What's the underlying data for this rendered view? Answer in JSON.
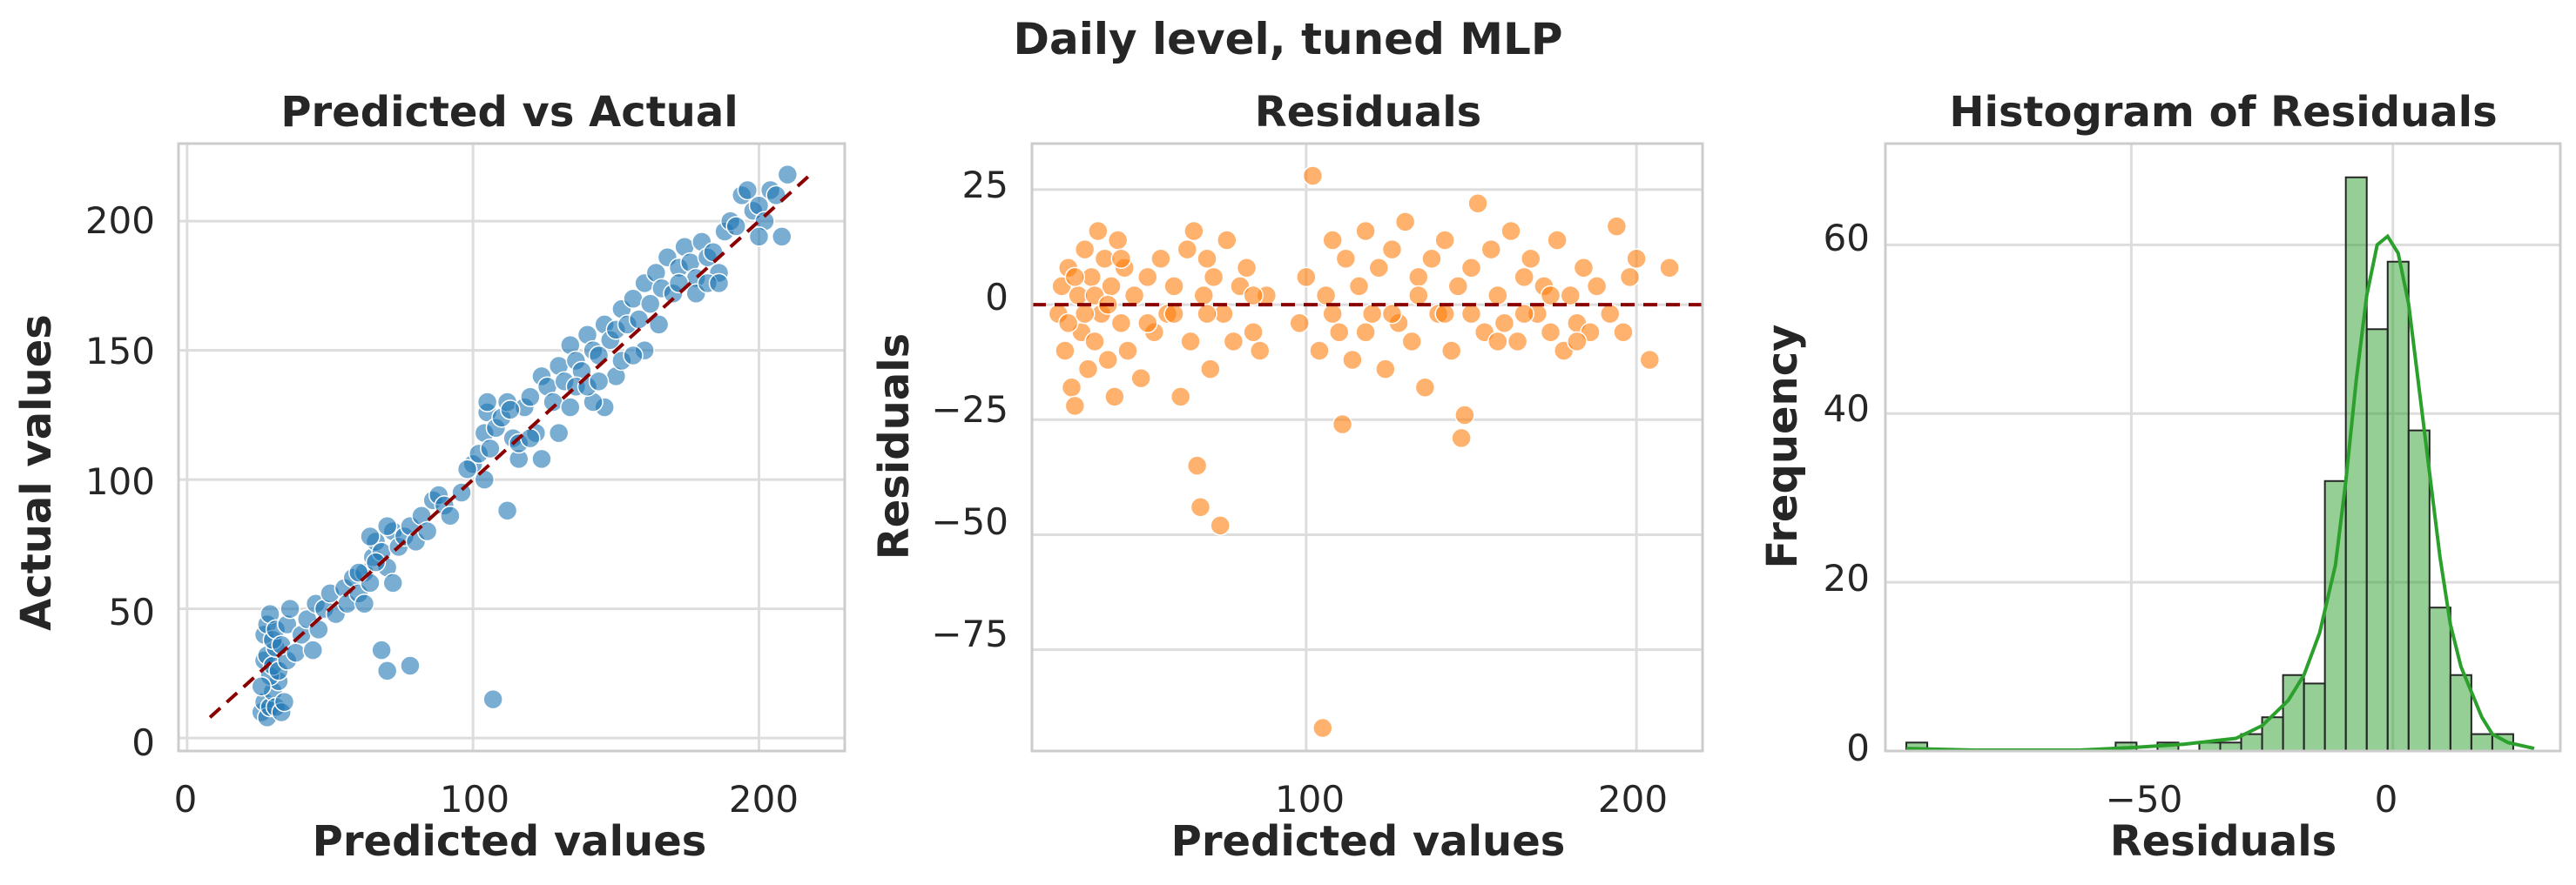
{
  "figure": {
    "suptitle": "Daily level, tuned MLP"
  },
  "colors": {
    "scatter": "#1f77b4",
    "residual": "#ff7f0e",
    "hist": "#2ca02c",
    "refline": "#8b0000",
    "grid": "#dddddd"
  },
  "panels": [
    {
      "title": "Predicted vs Actual",
      "xlabel": "Predicted values",
      "ylabel": "Actual values",
      "xticks": [
        "0",
        "100",
        "200"
      ],
      "yticks": [
        "0",
        "50",
        "100",
        "150",
        "200"
      ]
    },
    {
      "title": "Residuals",
      "xlabel": "Predicted values",
      "ylabel": "Residuals",
      "xticks": [
        "100",
        "200"
      ],
      "yticks": [
        "25",
        "0",
        "−25",
        "−50",
        "−75"
      ]
    },
    {
      "title": "Histogram of Residuals",
      "xlabel": "Residuals",
      "ylabel": "Frequency",
      "xticks": [
        "−50",
        "0"
      ],
      "yticks": [
        "0",
        "20",
        "40",
        "60"
      ]
    }
  ],
  "chart_data": [
    {
      "type": "scatter",
      "title": "Predicted vs Actual",
      "xlabel": "Predicted values",
      "ylabel": "Actual values",
      "xlim": [
        -3,
        230
      ],
      "ylim": [
        -5,
        230
      ],
      "reference_line": {
        "style": "dashed",
        "from": [
          8,
          8
        ],
        "to": [
          218,
          218
        ]
      },
      "points": [
        [
          26,
          10
        ],
        [
          27,
          14
        ],
        [
          28,
          8
        ],
        [
          29,
          12
        ],
        [
          30,
          18
        ],
        [
          31,
          12
        ],
        [
          32,
          22
        ],
        [
          33,
          10
        ],
        [
          29,
          24
        ],
        [
          26,
          20
        ],
        [
          27,
          30
        ],
        [
          28,
          32
        ],
        [
          30,
          28
        ],
        [
          31,
          35
        ],
        [
          32,
          26
        ],
        [
          34,
          14
        ],
        [
          35,
          30
        ],
        [
          27,
          40
        ],
        [
          28,
          44
        ],
        [
          29,
          48
        ],
        [
          30,
          38
        ],
        [
          31,
          42
        ],
        [
          33,
          36
        ],
        [
          35,
          44
        ],
        [
          36,
          50
        ],
        [
          38,
          33
        ],
        [
          40,
          40
        ],
        [
          42,
          46
        ],
        [
          44,
          34
        ],
        [
          45,
          52
        ],
        [
          46,
          42
        ],
        [
          48,
          50
        ],
        [
          50,
          56
        ],
        [
          52,
          48
        ],
        [
          55,
          58
        ],
        [
          56,
          52
        ],
        [
          58,
          62
        ],
        [
          60,
          56
        ],
        [
          62,
          64
        ],
        [
          64,
          60
        ],
        [
          65,
          70
        ],
        [
          66,
          76
        ],
        [
          68,
          72
        ],
        [
          70,
          66
        ],
        [
          72,
          80
        ],
        [
          74,
          74
        ],
        [
          76,
          78
        ],
        [
          78,
          82
        ],
        [
          80,
          76
        ],
        [
          82,
          86
        ],
        [
          84,
          80
        ],
        [
          86,
          92
        ],
        [
          88,
          94
        ],
        [
          90,
          90
        ],
        [
          60,
          64
        ],
        [
          62,
          52
        ],
        [
          64,
          78
        ],
        [
          66,
          68
        ],
        [
          70,
          82
        ],
        [
          72,
          60
        ],
        [
          68,
          34
        ],
        [
          70,
          26
        ],
        [
          78,
          28
        ],
        [
          107,
          15
        ],
        [
          100,
          106
        ],
        [
          102,
          110
        ],
        [
          104,
          118
        ],
        [
          105,
          126
        ],
        [
          106,
          112
        ],
        [
          108,
          120
        ],
        [
          110,
          124
        ],
        [
          112,
          130
        ],
        [
          114,
          116
        ],
        [
          116,
          108
        ],
        [
          118,
          128
        ],
        [
          120,
          132
        ],
        [
          122,
          118
        ],
        [
          124,
          140
        ],
        [
          126,
          136
        ],
        [
          128,
          130
        ],
        [
          130,
          144
        ],
        [
          132,
          138
        ],
        [
          134,
          152
        ],
        [
          136,
          146
        ],
        [
          138,
          142
        ],
        [
          140,
          156
        ],
        [
          142,
          150
        ],
        [
          144,
          148
        ],
        [
          146,
          160
        ],
        [
          148,
          154
        ],
        [
          150,
          158
        ],
        [
          152,
          166
        ],
        [
          154,
          160
        ],
        [
          156,
          170
        ],
        [
          158,
          162
        ],
        [
          160,
          176
        ],
        [
          162,
          168
        ],
        [
          164,
          180
        ],
        [
          166,
          174
        ],
        [
          168,
          186
        ],
        [
          170,
          172
        ],
        [
          172,
          182
        ],
        [
          174,
          190
        ],
        [
          176,
          184
        ],
        [
          178,
          178
        ],
        [
          180,
          192
        ],
        [
          182,
          186
        ],
        [
          184,
          188
        ],
        [
          186,
          180
        ],
        [
          188,
          196
        ],
        [
          190,
          200
        ],
        [
          192,
          198
        ],
        [
          194,
          210
        ],
        [
          196,
          212
        ],
        [
          198,
          204
        ],
        [
          200,
          206
        ],
        [
          202,
          200
        ],
        [
          204,
          212
        ],
        [
          206,
          210
        ],
        [
          210,
          218
        ],
        [
          112,
          88
        ],
        [
          130,
          118
        ],
        [
          146,
          128
        ],
        [
          150,
          140
        ],
        [
          160,
          150
        ],
        [
          165,
          160
        ],
        [
          200,
          194
        ],
        [
          208,
          194
        ],
        [
          105,
          130
        ],
        [
          113,
          127
        ],
        [
          124,
          108
        ],
        [
          142,
          130
        ],
        [
          178,
          172
        ],
        [
          182,
          176
        ],
        [
          96,
          95
        ],
        [
          92,
          86
        ],
        [
          98,
          104
        ],
        [
          104,
          100
        ],
        [
          116,
          114
        ],
        [
          120,
          116
        ],
        [
          134,
          128
        ],
        [
          136,
          136
        ],
        [
          140,
          136
        ],
        [
          144,
          138
        ],
        [
          152,
          146
        ],
        [
          156,
          148
        ],
        [
          172,
          176
        ],
        [
          186,
          176
        ]
      ]
    },
    {
      "type": "scatter",
      "title": "Residuals",
      "xlabel": "Predicted values",
      "ylabel": "Residuals",
      "xlim": [
        17,
        220
      ],
      "ylim": [
        -97,
        35
      ],
      "reference_line": {
        "style": "dashed",
        "y": 0
      },
      "points": [
        [
          25,
          -2
        ],
        [
          26,
          4
        ],
        [
          27,
          -10
        ],
        [
          28,
          8
        ],
        [
          29,
          -18
        ],
        [
          30,
          -22
        ],
        [
          31,
          2
        ],
        [
          32,
          -6
        ],
        [
          33,
          12
        ],
        [
          34,
          -14
        ],
        [
          35,
          6
        ],
        [
          36,
          -8
        ],
        [
          37,
          16
        ],
        [
          38,
          -2
        ],
        [
          39,
          10
        ],
        [
          40,
          -12
        ],
        [
          41,
          4
        ],
        [
          42,
          -20
        ],
        [
          43,
          14
        ],
        [
          44,
          -4
        ],
        [
          45,
          8
        ],
        [
          46,
          -10
        ],
        [
          48,
          2
        ],
        [
          50,
          -16
        ],
        [
          52,
          6
        ],
        [
          54,
          -6
        ],
        [
          56,
          10
        ],
        [
          58,
          -2
        ],
        [
          60,
          4
        ],
        [
          62,
          -20
        ],
        [
          64,
          12
        ],
        [
          65,
          -8
        ],
        [
          66,
          16
        ],
        [
          67,
          -35
        ],
        [
          68,
          -44
        ],
        [
          69,
          2
        ],
        [
          70,
          10
        ],
        [
          71,
          -14
        ],
        [
          72,
          6
        ],
        [
          74,
          -48
        ],
        [
          75,
          -2
        ],
        [
          76,
          14
        ],
        [
          78,
          -8
        ],
        [
          80,
          4
        ],
        [
          82,
          8
        ],
        [
          84,
          -6
        ],
        [
          86,
          -10
        ],
        [
          88,
          2
        ],
        [
          98,
          -4
        ],
        [
          100,
          6
        ],
        [
          102,
          28
        ],
        [
          104,
          -10
        ],
        [
          105,
          -92
        ],
        [
          106,
          2
        ],
        [
          108,
          14
        ],
        [
          110,
          -6
        ],
        [
          111,
          -26
        ],
        [
          112,
          10
        ],
        [
          114,
          -12
        ],
        [
          116,
          4
        ],
        [
          118,
          16
        ],
        [
          120,
          -2
        ],
        [
          122,
          8
        ],
        [
          124,
          -14
        ],
        [
          126,
          12
        ],
        [
          128,
          -4
        ],
        [
          130,
          18
        ],
        [
          132,
          -8
        ],
        [
          134,
          6
        ],
        [
          136,
          -18
        ],
        [
          138,
          10
        ],
        [
          140,
          -2
        ],
        [
          142,
          14
        ],
        [
          144,
          -10
        ],
        [
          146,
          4
        ],
        [
          147,
          -29
        ],
        [
          148,
          -24
        ],
        [
          150,
          8
        ],
        [
          152,
          22
        ],
        [
          154,
          -6
        ],
        [
          156,
          12
        ],
        [
          158,
          2
        ],
        [
          160,
          -4
        ],
        [
          162,
          16
        ],
        [
          164,
          -8
        ],
        [
          166,
          6
        ],
        [
          168,
          10
        ],
        [
          170,
          -2
        ],
        [
          172,
          4
        ],
        [
          174,
          -6
        ],
        [
          176,
          14
        ],
        [
          178,
          -10
        ],
        [
          180,
          2
        ],
        [
          182,
          -4
        ],
        [
          184,
          8
        ],
        [
          186,
          -6
        ],
        [
          188,
          4
        ],
        [
          192,
          -2
        ],
        [
          194,
          17
        ],
        [
          196,
          -6
        ],
        [
          198,
          6
        ],
        [
          200,
          10
        ],
        [
          204,
          -12
        ],
        [
          210,
          8
        ],
        [
          28,
          -4
        ],
        [
          30,
          6
        ],
        [
          33,
          -2
        ],
        [
          36,
          2
        ],
        [
          40,
          0
        ],
        [
          44,
          10
        ],
        [
          52,
          -4
        ],
        [
          60,
          -2
        ],
        [
          70,
          -2
        ],
        [
          84,
          2
        ],
        [
          108,
          -2
        ],
        [
          118,
          -6
        ],
        [
          126,
          -2
        ],
        [
          134,
          2
        ],
        [
          142,
          -2
        ],
        [
          150,
          -2
        ],
        [
          158,
          -8
        ],
        [
          166,
          -2
        ],
        [
          174,
          2
        ],
        [
          182,
          -8
        ]
      ]
    },
    {
      "type": "histogram",
      "title": "Histogram of Residuals",
      "xlabel": "Residuals",
      "ylabel": "Frequency",
      "xlim": [
        -97,
        32
      ],
      "ylim": [
        0,
        72
      ],
      "bin_start": -93,
      "bin_width": 4,
      "counts": [
        1,
        0,
        0,
        0,
        0,
        0,
        0,
        0,
        0,
        0,
        1,
        0,
        1,
        0,
        1,
        1,
        2,
        4,
        9,
        8,
        32,
        68,
        50,
        58,
        38,
        17,
        9,
        2,
        2
      ],
      "kde": [
        [
          -93,
          0.3
        ],
        [
          -80,
          0.1
        ],
        [
          -60,
          0.1
        ],
        [
          -50,
          0.4
        ],
        [
          -40,
          0.8
        ],
        [
          -30,
          1.5
        ],
        [
          -25,
          3
        ],
        [
          -20,
          6
        ],
        [
          -17,
          9
        ],
        [
          -14,
          14
        ],
        [
          -11,
          22
        ],
        [
          -9,
          32
        ],
        [
          -7,
          44
        ],
        [
          -5,
          54
        ],
        [
          -3,
          60
        ],
        [
          -1,
          61
        ],
        [
          1,
          59
        ],
        [
          3,
          53
        ],
        [
          5,
          43
        ],
        [
          7,
          33
        ],
        [
          9,
          23
        ],
        [
          11,
          15
        ],
        [
          13,
          10
        ],
        [
          15,
          7
        ],
        [
          17,
          4
        ],
        [
          19,
          2
        ],
        [
          22,
          1
        ],
        [
          27,
          0.3
        ]
      ]
    }
  ]
}
